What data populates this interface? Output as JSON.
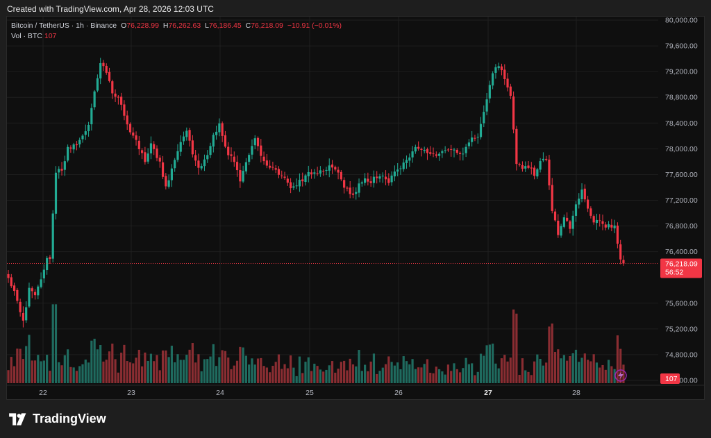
{
  "header": {
    "created_text": "Created with TradingView.com, Apr 28, 2026 12:03 UTC"
  },
  "legend": {
    "symbol": "Bitcoin / TetherUS · 1h · Binance",
    "o_label": "O",
    "o_value": "76,228.99",
    "h_label": "H",
    "h_value": "76,262.63",
    "l_label": "L",
    "l_value": "76,186.45",
    "c_label": "C",
    "c_value": "76,218.09",
    "change": "−10.91 (−0.01%)",
    "vol_label": "Vol · BTC",
    "vol_value": "107"
  },
  "price_tag": {
    "price": "76,218.09",
    "countdown": "56:52"
  },
  "volume_tag": "107",
  "brand": {
    "name": "TradingView"
  },
  "colors": {
    "up": "#22ab94",
    "down": "#f23645",
    "up_vol": "#1f6b5f",
    "down_vol": "#8a2d32",
    "grid": "#1f1f1f"
  },
  "chart_data": {
    "type": "candlestick",
    "ylim": [
      74400,
      80000
    ],
    "y_ticks": [
      "80,000.00",
      "79,600.00",
      "79,200.00",
      "78,800.00",
      "78,400.00",
      "78,000.00",
      "77,600.00",
      "77,200.00",
      "76,800.00",
      "76,400.00",
      "75,600.00",
      "75,200.00",
      "74,800.00",
      "74,400.00"
    ],
    "x_ticks": [
      "22",
      "23",
      "24",
      "25",
      "26",
      "27",
      "28"
    ],
    "last_close": 76218.09,
    "seed": 4321,
    "anchors": [
      [
        0,
        76000
      ],
      [
        2,
        75800
      ],
      [
        5,
        75300
      ],
      [
        7,
        75800
      ],
      [
        9,
        75700
      ],
      [
        11,
        76000
      ],
      [
        13,
        76300
      ],
      [
        14,
        76300
      ],
      [
        16,
        77600
      ],
      [
        18,
        77700
      ],
      [
        20,
        78000
      ],
      [
        24,
        78100
      ],
      [
        27,
        78400
      ],
      [
        29,
        78900
      ],
      [
        31,
        79300
      ],
      [
        33,
        79200
      ],
      [
        35,
        78900
      ],
      [
        37,
        78800
      ],
      [
        40,
        78400
      ],
      [
        43,
        78100
      ],
      [
        46,
        77800
      ],
      [
        48,
        78100
      ],
      [
        51,
        77800
      ],
      [
        53,
        77400
      ],
      [
        56,
        77800
      ],
      [
        58,
        78100
      ],
      [
        60,
        78300
      ],
      [
        62,
        77900
      ],
      [
        64,
        77700
      ],
      [
        66,
        77800
      ],
      [
        69,
        78200
      ],
      [
        71,
        78400
      ],
      [
        73,
        78000
      ],
      [
        76,
        77800
      ],
      [
        78,
        77500
      ],
      [
        80,
        77800
      ],
      [
        83,
        78200
      ],
      [
        86,
        77800
      ],
      [
        89,
        77700
      ],
      [
        92,
        77600
      ],
      [
        95,
        77400
      ],
      [
        98,
        77500
      ],
      [
        101,
        77600
      ],
      [
        104,
        77600
      ],
      [
        107,
        77700
      ],
      [
        110,
        77700
      ],
      [
        113,
        77400
      ],
      [
        116,
        77300
      ],
      [
        119,
        77500
      ],
      [
        122,
        77500
      ],
      [
        125,
        77600
      ],
      [
        128,
        77500
      ],
      [
        131,
        77700
      ],
      [
        134,
        77800
      ],
      [
        137,
        78000
      ],
      [
        140,
        78000
      ],
      [
        143,
        77900
      ],
      [
        146,
        78000
      ],
      [
        149,
        78000
      ],
      [
        152,
        77900
      ],
      [
        155,
        78100
      ],
      [
        158,
        78200
      ],
      [
        161,
        78800
      ],
      [
        163,
        79200
      ],
      [
        165,
        79300
      ],
      [
        167,
        79100
      ],
      [
        169,
        78800
      ],
      [
        171,
        77800
      ],
      [
        173,
        77700
      ],
      [
        175,
        77700
      ],
      [
        177,
        77600
      ],
      [
        179,
        77800
      ],
      [
        181,
        77800
      ],
      [
        183,
        77000
      ],
      [
        185,
        76700
      ],
      [
        187,
        76900
      ],
      [
        189,
        76800
      ],
      [
        191,
        77100
      ],
      [
        193,
        77400
      ],
      [
        195,
        77100
      ],
      [
        197,
        76900
      ],
      [
        199,
        76900
      ],
      [
        201,
        76800
      ],
      [
        204,
        76800
      ],
      [
        206,
        76300
      ],
      [
        207,
        76220
      ]
    ],
    "volume_ylim": [
      0,
      1800
    ]
  }
}
